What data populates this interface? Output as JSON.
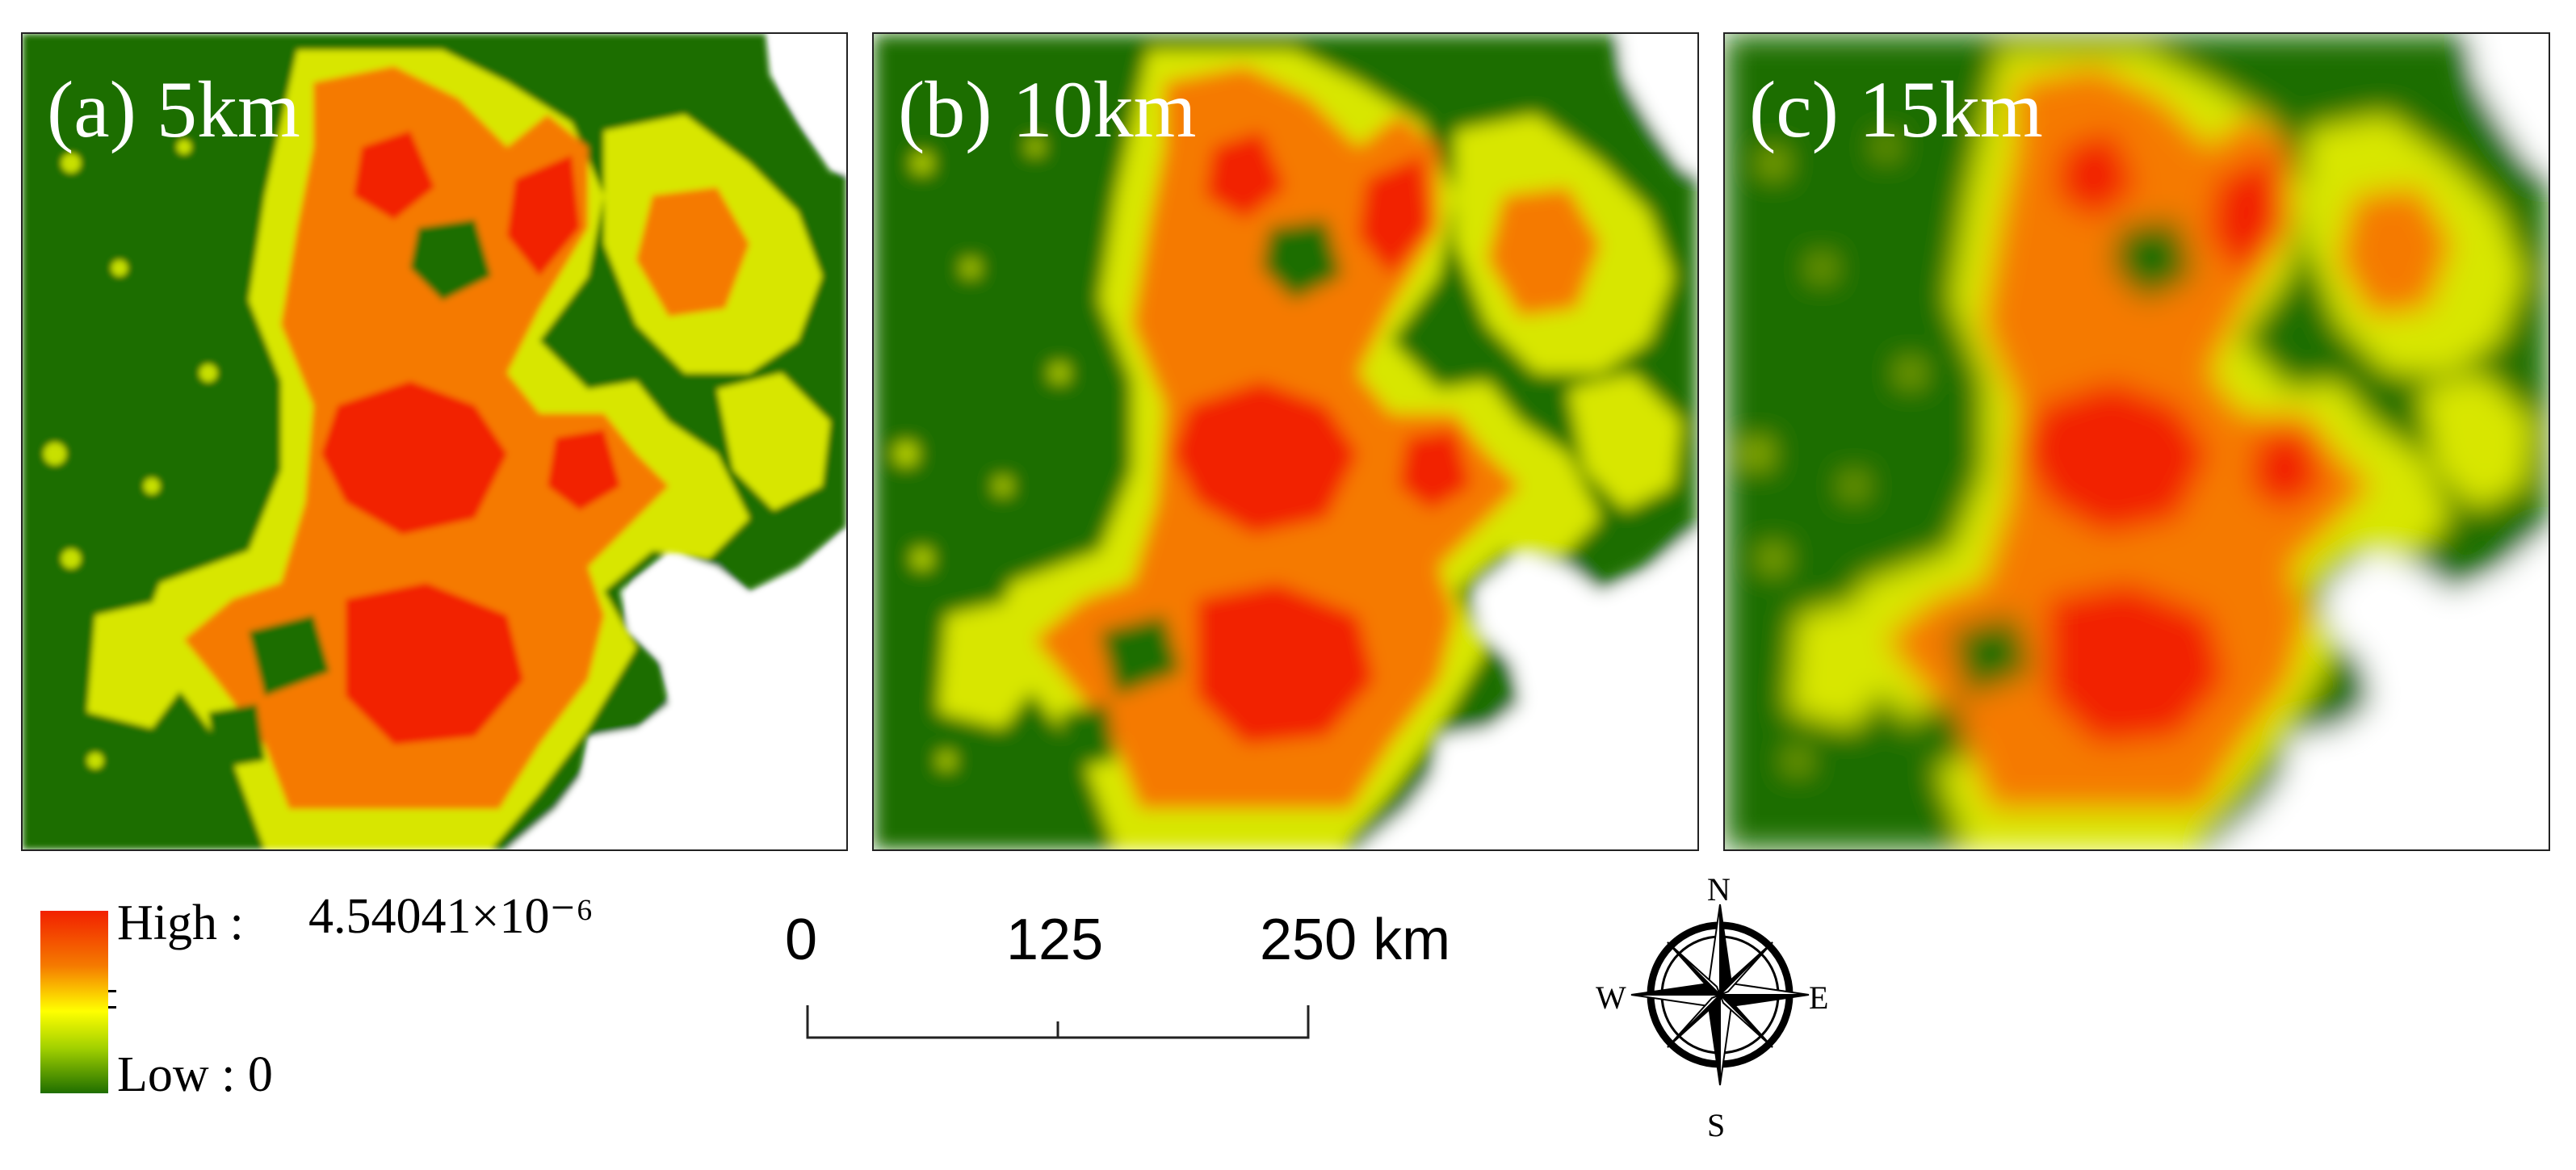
{
  "panels": [
    {
      "id": "a",
      "label": "(a) 5km",
      "bandwidth_km": 5
    },
    {
      "id": "b",
      "label": "(b) 10km",
      "bandwidth_km": 10
    },
    {
      "id": "c",
      "label": "(c) 15km",
      "bandwidth_km": 15
    }
  ],
  "legend": {
    "high_label": "High :",
    "high_value": "4.54041×10⁻⁶",
    "low_label": "Low : 0",
    "colors": {
      "high": "#f22000",
      "mid_high": "#f57a00",
      "mid": "#ffff00",
      "mid_low": "#a3d100",
      "low": "#1f6e00"
    }
  },
  "scale_bar": {
    "ticks": [
      "0",
      "125",
      "250 km"
    ]
  },
  "compass": {
    "north": "N",
    "south": "S",
    "east": "E",
    "west": "W"
  },
  "colors": {
    "background": "#ffffff",
    "water_or_nodata": "#ffffff"
  }
}
